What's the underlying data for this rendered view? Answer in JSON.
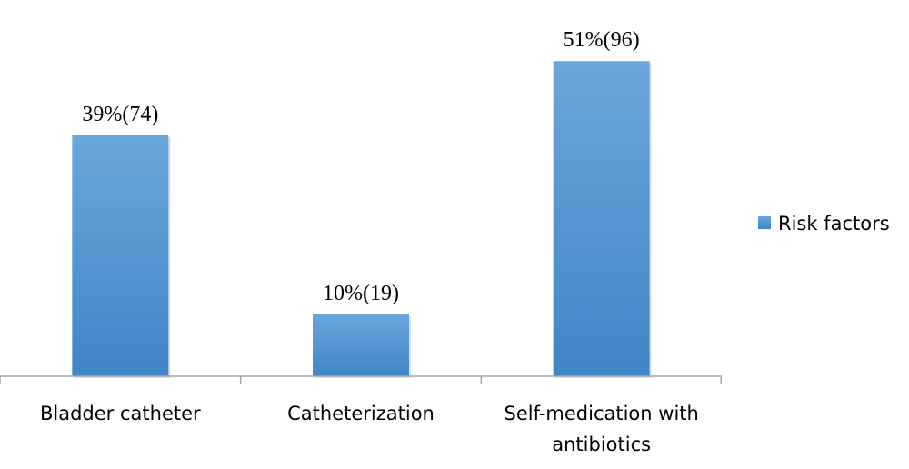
{
  "chart_data": {
    "type": "bar",
    "categories": [
      [
        "Bladder catheter"
      ],
      [
        "Catheterization"
      ],
      [
        "Self-medication with",
        "antibiotics"
      ]
    ],
    "series": [
      {
        "name": "Risk factors",
        "values": [
          39,
          10,
          51
        ],
        "data_labels": [
          "39%(74)",
          "10%(19)",
          "51%(96)"
        ],
        "color": "#5b9bd5"
      }
    ],
    "ylim": [
      0,
      55
    ],
    "grid": false,
    "legend": "right"
  }
}
